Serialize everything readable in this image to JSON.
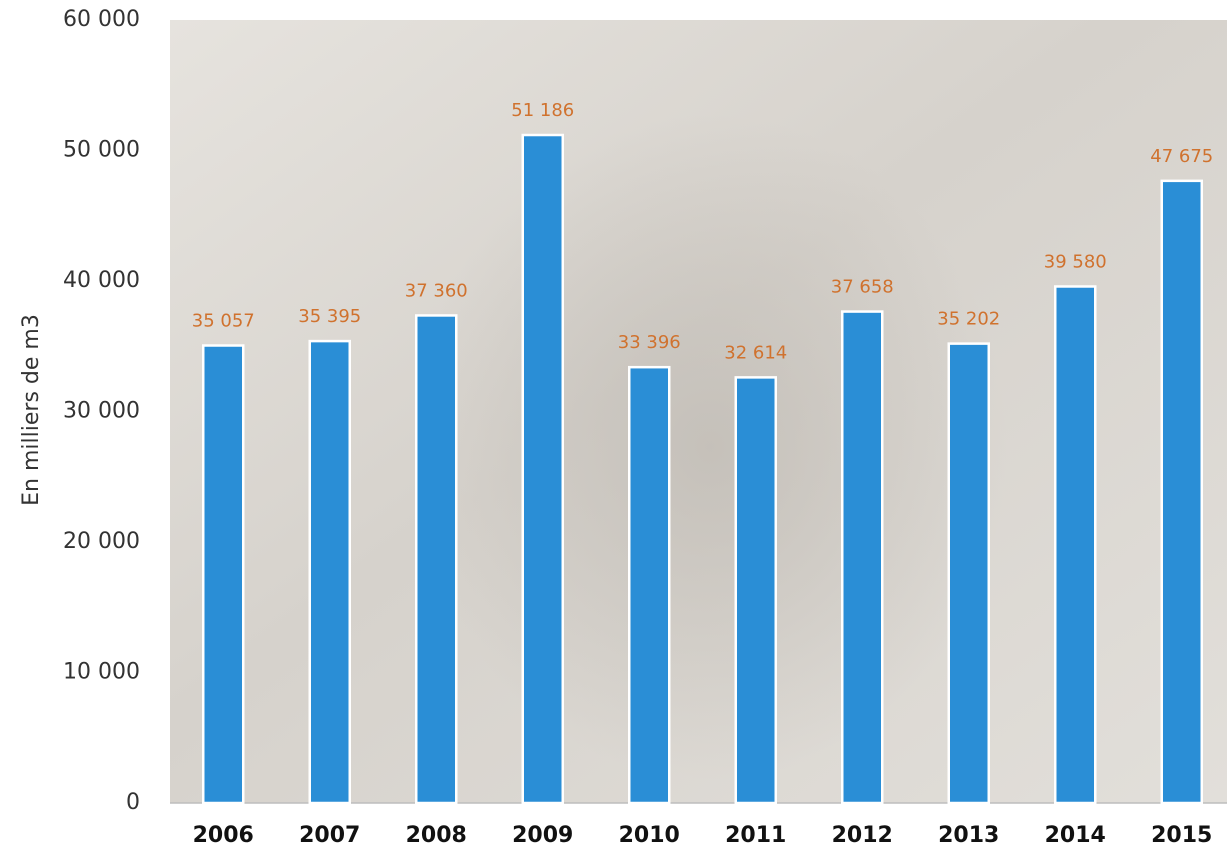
{
  "chart_data": {
    "type": "bar",
    "y_label": "En milliers de m3",
    "categories": [
      "2006",
      "2007",
      "2008",
      "2009",
      "2010",
      "2011",
      "2012",
      "2013",
      "2014",
      "2015"
    ],
    "values": [
      35057,
      35395,
      37360,
      51186,
      33396,
      32614,
      37658,
      35202,
      39580,
      47675
    ],
    "value_labels": [
      "35 057",
      "35 395",
      "37 360",
      "51 186",
      "33 396",
      "32 614",
      "37 658",
      "35 202",
      "39 580",
      "47 675"
    ],
    "color": "#2a8ed6",
    "label_color": "#d0722e",
    "ylim": [
      0,
      60000
    ],
    "yticks": [
      0,
      {
        "value": 10000,
        "label": "10 000"
      },
      {
        "value": 20000,
        "label": "20 000"
      },
      {
        "value": 30000,
        "label": "30 000"
      },
      {
        "value": 40000,
        "label": "40 000"
      },
      {
        "value": 50000,
        "label": "50 000"
      },
      {
        "value": 60000,
        "label": "60 000"
      }
    ]
  }
}
